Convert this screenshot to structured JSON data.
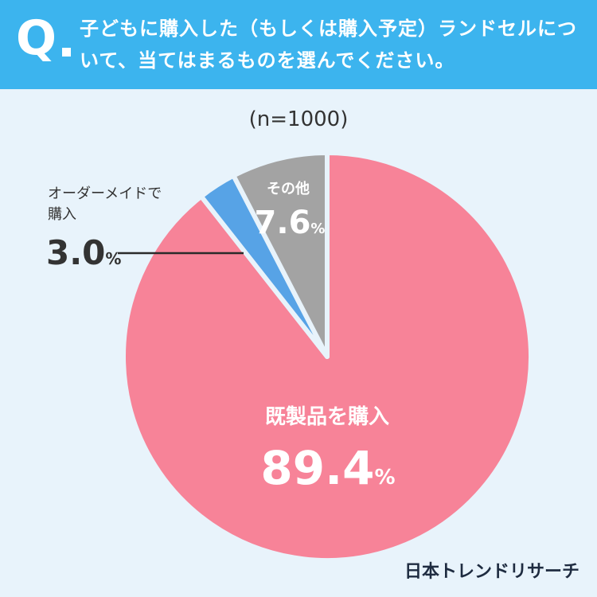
{
  "header": {
    "q_label": "Q",
    "question": "子どもに購入した（もしくは購入予定）ランドセルについて、当てはまるものを選んでください。"
  },
  "sample_note": "(n=1000)",
  "brand": "日本トレンドリサーチ",
  "colors": {
    "header_bg": "#3cb4ee",
    "page_bg": "#e8f3fb"
  },
  "chart_data": {
    "type": "pie",
    "start": "12 o'clock",
    "direction": "clockwise",
    "slices": [
      {
        "label": "既製品を購入",
        "value": 89.4,
        "display": "89.4",
        "unit": "%",
        "color": "#f78398",
        "label_color": "#ffffff"
      },
      {
        "label": "オーダーメイドで購入",
        "value": 3.0,
        "display": "3.0",
        "unit": "%",
        "color": "#57a3e6",
        "label_color": "#333333"
      },
      {
        "label": "その他",
        "value": 7.6,
        "display": "7.6",
        "unit": "%",
        "color": "#a3a3a3",
        "label_color": "#ffffff"
      }
    ]
  }
}
